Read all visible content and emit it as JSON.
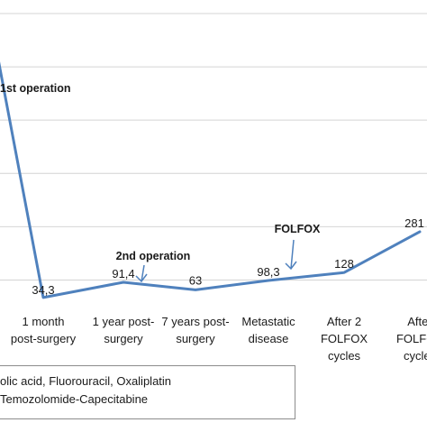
{
  "chart_data": {
    "type": "line",
    "categories": [
      [
        "",
        ""
      ],
      [
        "1 month",
        "post-surgery"
      ],
      [
        "1 year post-",
        "surgery"
      ],
      [
        "7 years post-",
        "surgery"
      ],
      [
        "Metastatic",
        "disease"
      ],
      [
        "After 2",
        "FOLFOX",
        "cycles"
      ],
      [
        "After",
        "FOLFOX",
        "cycles"
      ]
    ],
    "values": [
      1000,
      34.3,
      91.4,
      63,
      98.3,
      128,
      281
    ],
    "data_labels": [
      "",
      "34,3",
      "91,4",
      "63",
      "98,3",
      "128",
      "281"
    ],
    "ylim": [
      0,
      1100
    ],
    "grid": true,
    "line_color": "#4f81bd",
    "annotations": [
      {
        "text": "1st operation",
        "at_category": 0,
        "arrow": false
      },
      {
        "text": "2nd operation",
        "at_category": 2,
        "arrow": true
      },
      {
        "text": "FOLFOX",
        "at_category": 4,
        "arrow": true
      }
    ],
    "legend": {
      "placement": "bottom-left",
      "entries": [
        "olic acid, Fluorouracil, Oxaliplatin",
        "Temozolomide-Capecitabine"
      ]
    }
  }
}
